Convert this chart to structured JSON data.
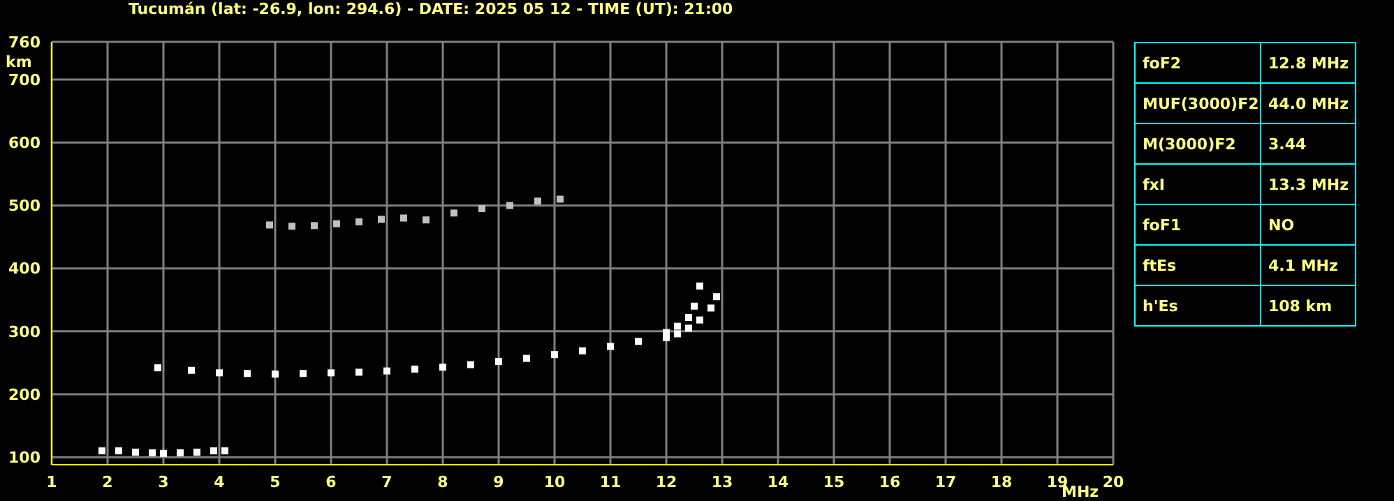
{
  "chart_data": [
    {
      "type": "scatter",
      "title": "Tucumán (lat: -26.9, lon: 294.6) - DATE: 2025 05 12 - TIME (UT): 21:00",
      "xlabel": "MHz",
      "ylabel": "km",
      "xlim": [
        1,
        20
      ],
      "ylim": [
        88,
        760
      ],
      "xticks": [
        1,
        2,
        3,
        4,
        5,
        6,
        7,
        8,
        9,
        10,
        11,
        12,
        13,
        14,
        15,
        16,
        17,
        18,
        19,
        20
      ],
      "yticks": [
        100,
        200,
        300,
        400,
        500,
        600,
        700,
        760
      ],
      "grid": true,
      "marker": "square",
      "series": [
        {
          "color": "#ffffff",
          "x": [
            2.9,
            3.5,
            4,
            4.5,
            5,
            5.5,
            6,
            6.5,
            7,
            7.5,
            8,
            8.5,
            9,
            9.5,
            10,
            10.5,
            11,
            11.5,
            12,
            12.2,
            12.4,
            12.5,
            12.6
          ],
          "values": [
            242,
            238,
            234,
            233,
            232,
            233,
            234,
            235,
            237,
            240,
            243,
            247,
            252,
            257,
            263,
            269,
            276,
            284,
            298,
            308,
            322,
            340,
            372
          ]
        },
        {
          "color": "#ffffff",
          "x": [
            12,
            12.2,
            12.4,
            12.6,
            12.8,
            12.9
          ],
          "values": [
            290,
            296,
            305,
            318,
            337,
            355
          ]
        },
        {
          "color": "#ffffff",
          "x": [
            1.9,
            2.2,
            2.5,
            2.8,
            3,
            3.3,
            3.6,
            3.9,
            4.1
          ],
          "values": [
            110,
            110,
            108,
            107,
            106,
            107,
            108,
            110,
            110
          ]
        },
        {
          "color": "#c0c0c0",
          "x": [
            4.9,
            5.3,
            5.7,
            6.1,
            6.5,
            6.9,
            7.3,
            7.7,
            8.2,
            8.7,
            9.2,
            9.7,
            10.1
          ],
          "values": [
            469,
            467,
            468,
            471,
            474,
            478,
            480,
            477,
            488,
            495,
            500,
            507,
            510
          ]
        }
      ]
    },
    {
      "type": "other",
      "annotations": [
        "foF2",
        "12.8 MHz",
        "MUF(3000)F2",
        "44.0 MHz",
        "M(3000)F2",
        "3.44",
        "fxI",
        "13.3 MHz",
        "foF1",
        "NO",
        "ftEs",
        "4.1 MHz",
        "h'Es",
        "108 km"
      ]
    }
  ]
}
